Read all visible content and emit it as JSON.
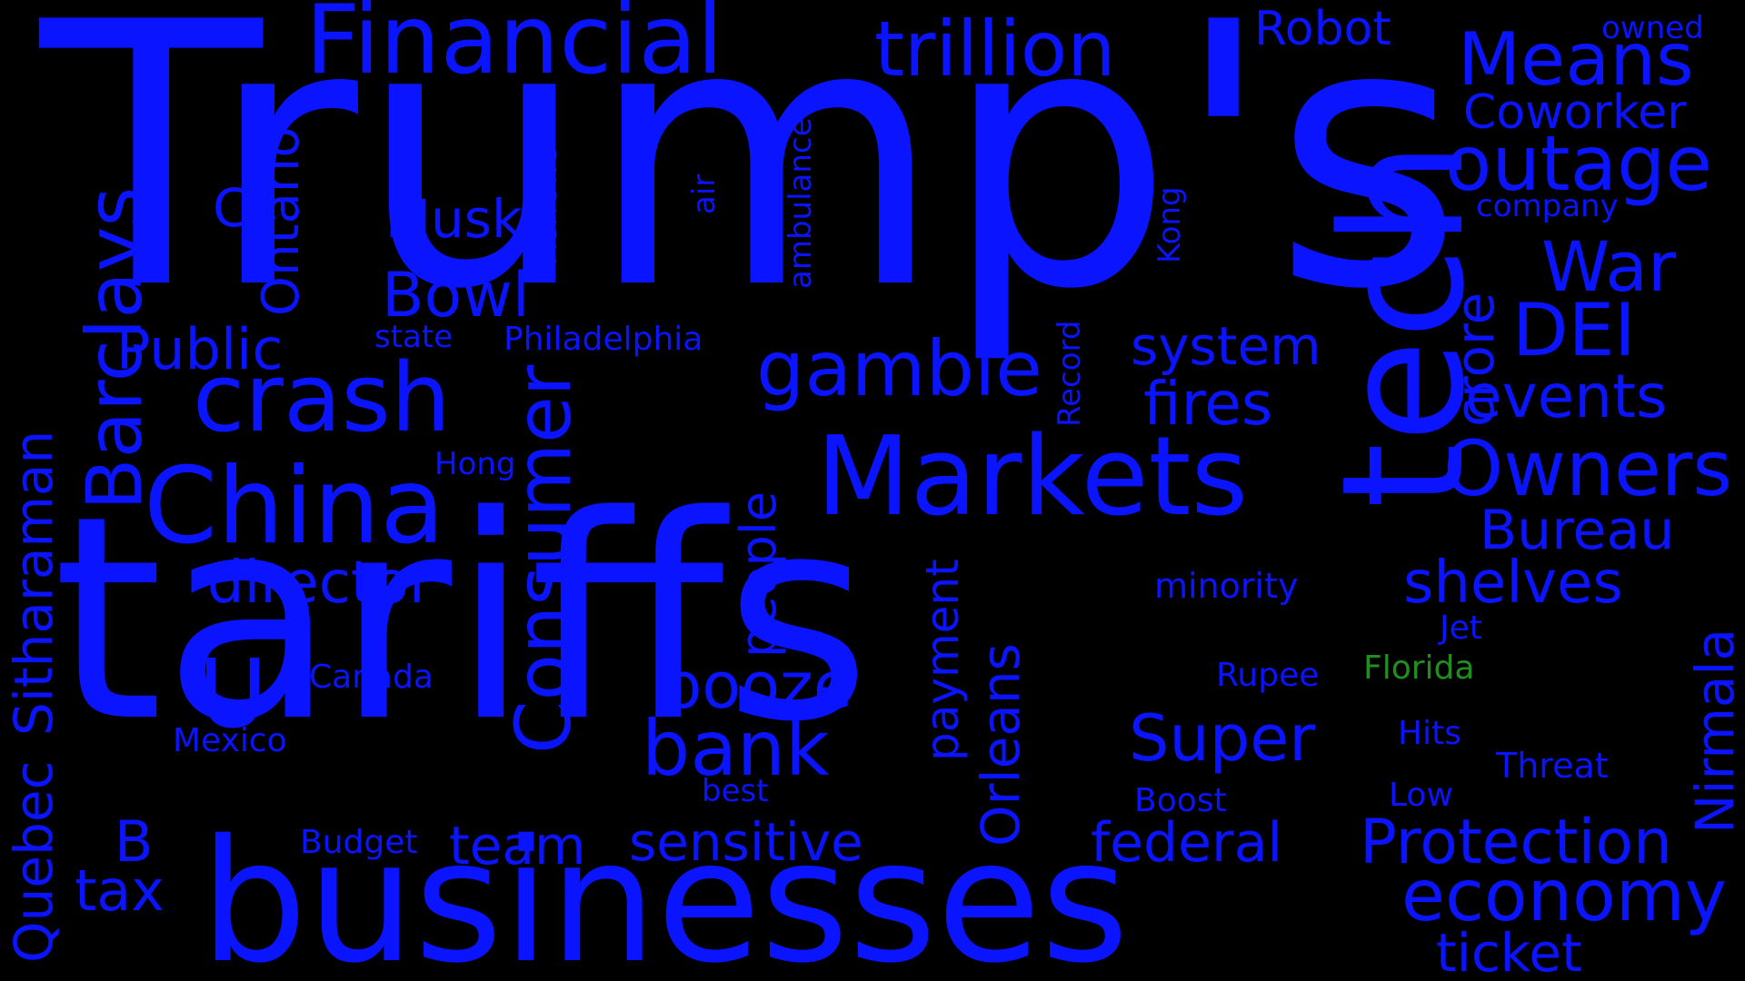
{
  "colors": {
    "background": "#000000",
    "primary_word": "#0a14ff",
    "accent_word": "#1f8f1f"
  },
  "words": {
    "tariffs": "tariffs",
    "trumps": "Trump's",
    "businesses": "businesses",
    "tech": "tech",
    "markets": "Markets",
    "china": "China",
    "financial": "Financial",
    "trillion": "trillion",
    "crash": "crash",
    "outage": "outage",
    "owners": "Owners",
    "consumer": "Consumer",
    "gamble": "gamble",
    "barclays": "Barclays",
    "economy": "economy",
    "bank": "bank",
    "protection": "Protection",
    "means": "Means",
    "director": "director",
    "booze": "booze",
    "super": "Super",
    "events": "events",
    "shelves": "shelves",
    "war": "War",
    "dei": "DEI",
    "bowl": "Bowl",
    "public": "Public",
    "coworker": "Coworker",
    "bureau": "Bureau",
    "sensitive": "sensitive",
    "federal": "federal",
    "ticket": "ticket",
    "fires": "fires",
    "system": "system",
    "robot": "Robot",
    "musk": "Musk",
    "quebec": "Quebec",
    "sitharaman": "Sitharaman",
    "ontario": "Ontario",
    "orleans": "Orleans",
    "people": "people",
    "payment": "payment",
    "nirmala": "Nirmala",
    "crore": "crore",
    "team": "team",
    "tax": "tax",
    "u": "U",
    "c": "C",
    "b": "B",
    "minority": "minority",
    "florida": "Florida",
    "canada": "Canada",
    "mexico": "Mexico",
    "rupee": "Rupee",
    "jet": "Jet",
    "hits": "Hits",
    "threat": "Threat",
    "boost": "Boost",
    "low": "Low",
    "best": "best",
    "budget": "Budget",
    "hong": "Hong",
    "kong": "Kong",
    "state": "state",
    "philadelphia": "Philadelphia",
    "company": "company",
    "owned": "owned",
    "air": "air",
    "ambulance": "ambulance",
    "renews": "Renews",
    "record": "Record"
  }
}
